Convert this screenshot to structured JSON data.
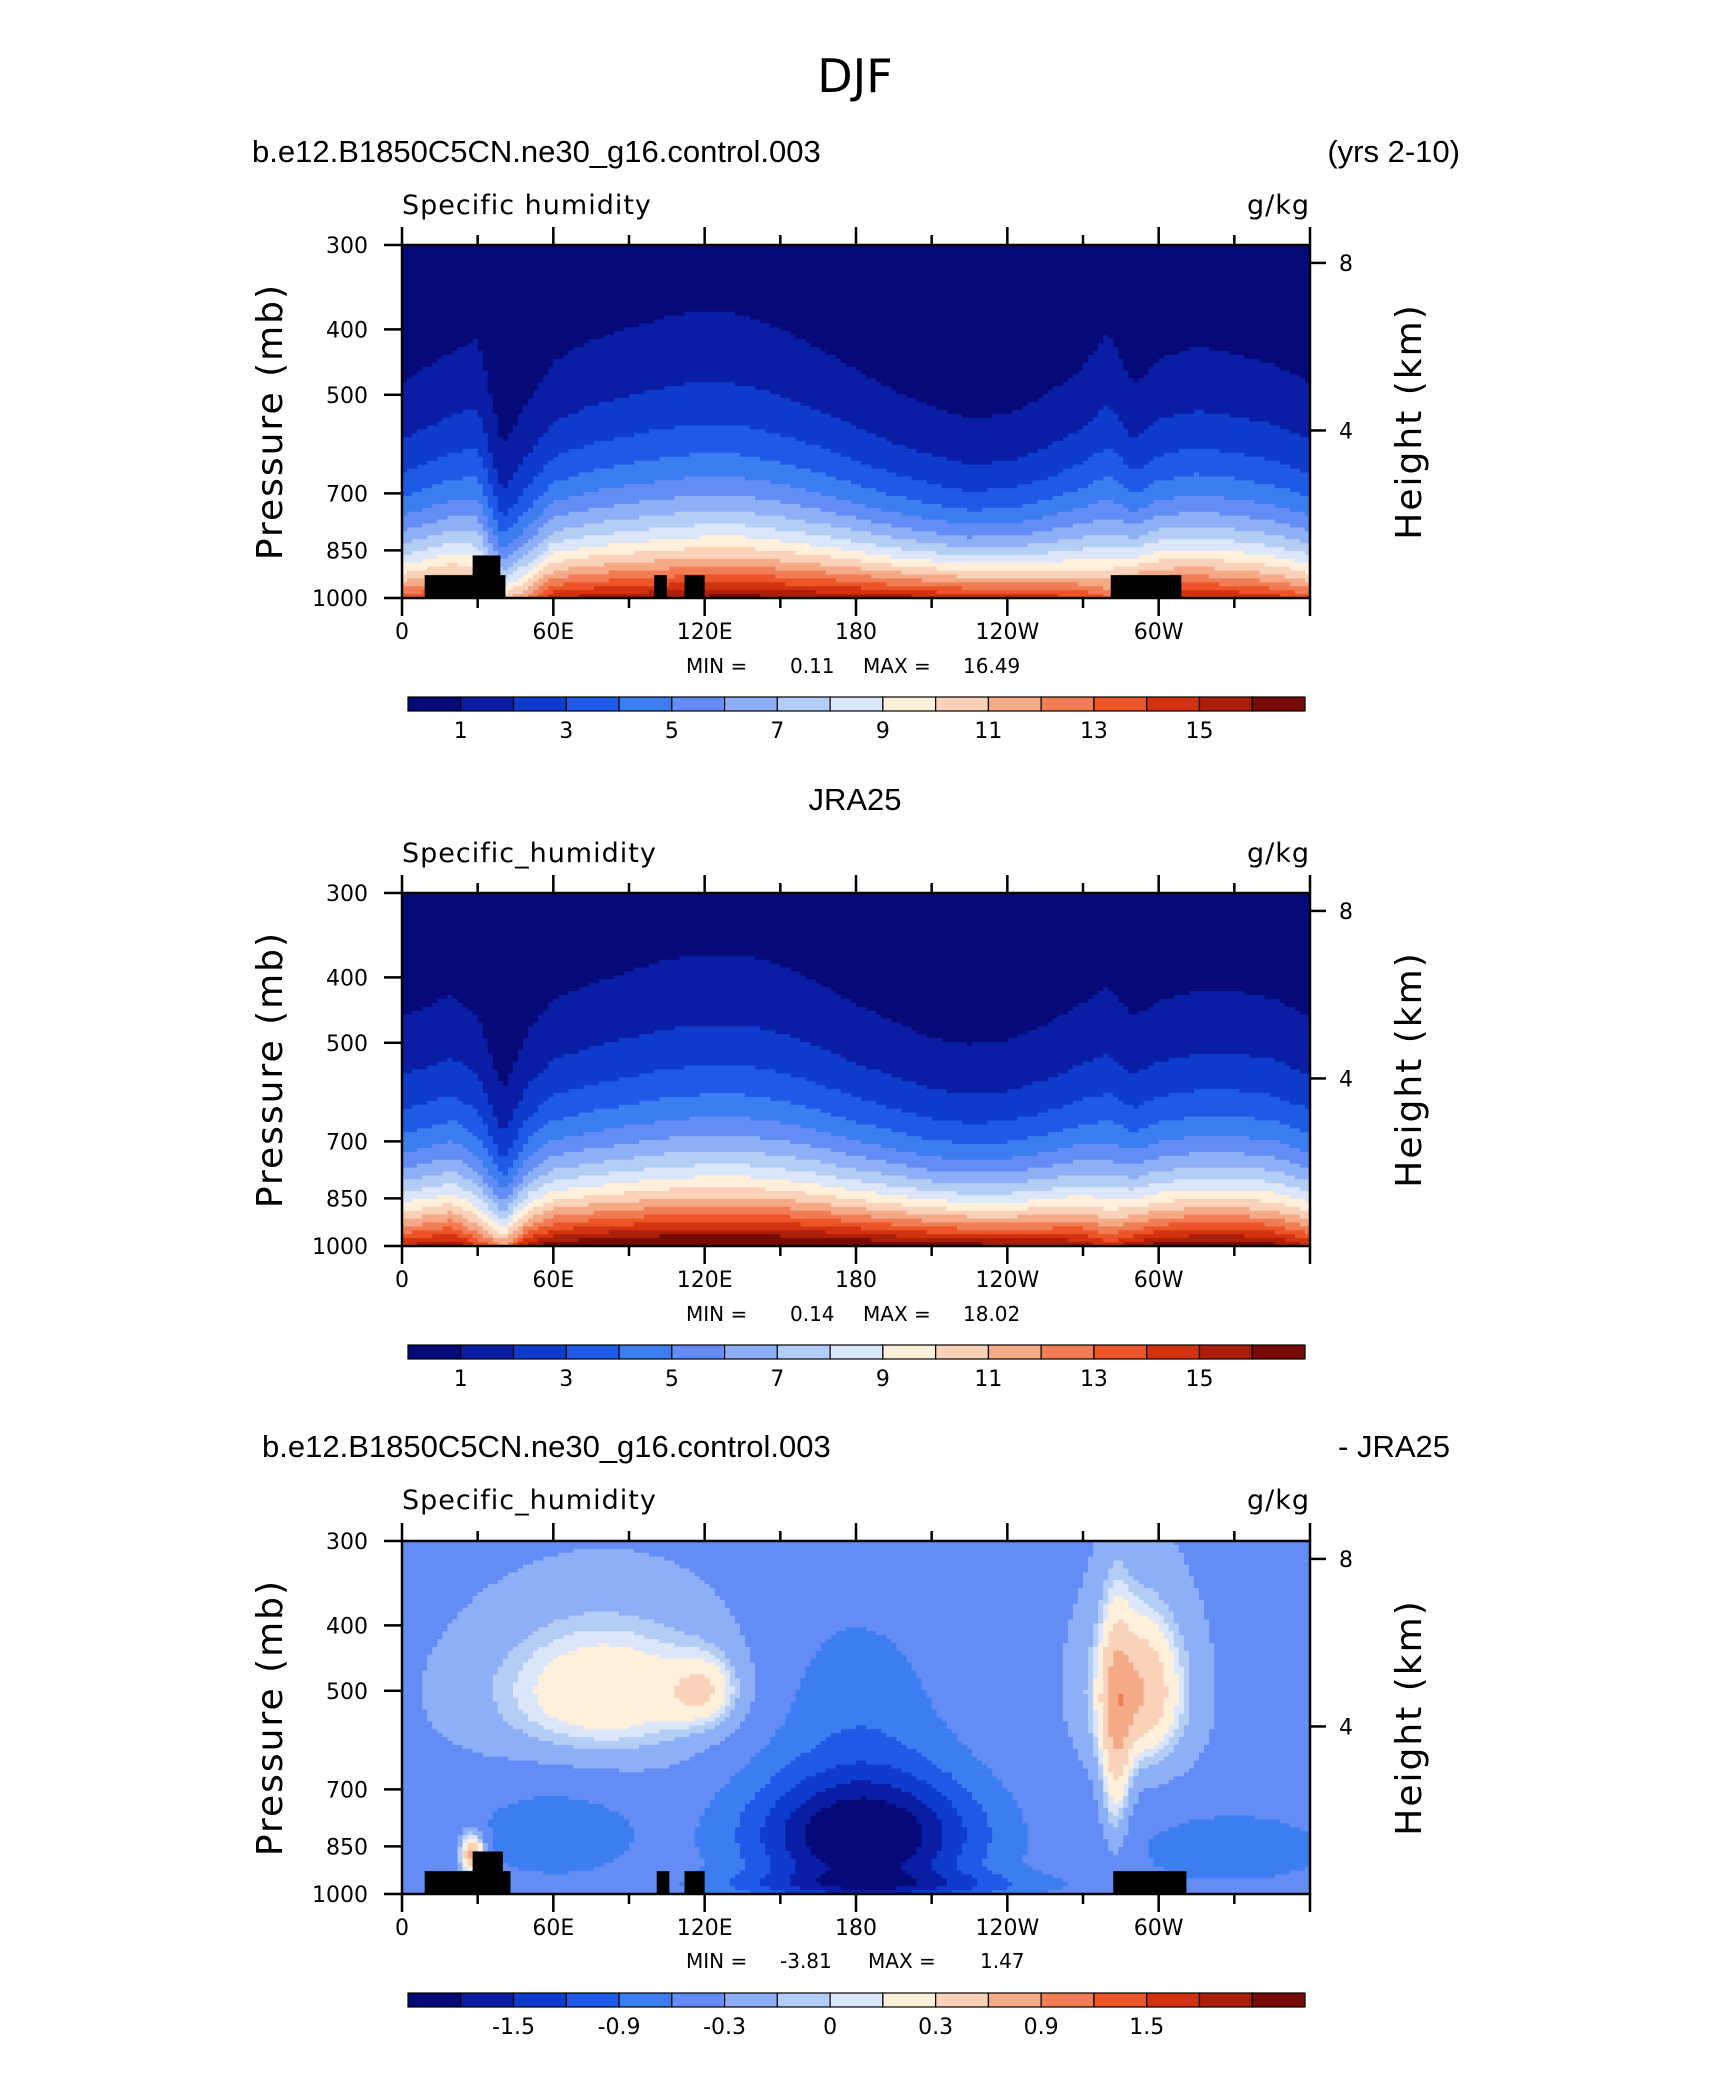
{
  "figure_title": "DJF",
  "panels": [
    {
      "title_left": "b.e12.B1850C5CN.ne30_g16.control.003",
      "title_right": "(yrs 2-10)",
      "var_label": "Specific humidity",
      "units": "g/kg",
      "min_label": "MIN =",
      "min_value": "0.11",
      "max_label": "MAX =",
      "max_value": "16.49"
    },
    {
      "title_center": "JRA25",
      "var_label": "Specific_humidity",
      "units": "g/kg",
      "min_label": "MIN =",
      "min_value": "0.14",
      "max_label": "MAX =",
      "max_value": "18.02"
    },
    {
      "title_left": "b.e12.B1850C5CN.ne30_g16.control.003",
      "title_right": "- JRA25",
      "var_label": "Specific_humidity",
      "units": "g/kg",
      "min_label": "MIN =",
      "min_value": "-3.81",
      "max_label": "MAX =",
      "max_value": "1.47"
    }
  ],
  "axes": {
    "ylabel_left": "Pressure (mb)",
    "ylabel_right": "Height (km)",
    "pressure_ticks": [
      "300",
      "400",
      "500",
      "700",
      "850",
      "1000"
    ],
    "height_ticks": [
      "8",
      "4"
    ],
    "lon_ticks": [
      "0",
      "60E",
      "120E",
      "180",
      "120W",
      "60W"
    ]
  },
  "colorbars": {
    "abs_labels": [
      "1",
      "3",
      "5",
      "7",
      "9",
      "11",
      "13",
      "15"
    ],
    "diff_labels": [
      "-1.5",
      "-0.9",
      "-0.3",
      "0",
      "0.3",
      "0.9",
      "1.5"
    ]
  },
  "colors": {
    "palette": [
      "#050a78",
      "#0a1ea5",
      "#0f3ccd",
      "#1e5ae6",
      "#3c7df0",
      "#648cf5",
      "#8caff5",
      "#b4cdf5",
      "#dce6fa",
      "#fff0dc",
      "#fad2b9",
      "#f5aa87",
      "#f07d55",
      "#eb5528",
      "#d2320f",
      "#aa1e0a",
      "#780a05"
    ],
    "abs_levels": [
      1,
      2,
      3,
      4,
      5,
      6,
      7,
      8,
      9,
      10,
      11,
      12,
      13,
      14,
      15,
      16
    ],
    "diff_levels": [
      -1.8,
      -1.5,
      -1.2,
      -0.9,
      -0.6,
      -0.3,
      -0.1,
      0,
      0.1,
      0.3,
      0.6,
      0.9,
      1.2,
      1.5,
      1.8,
      2.1
    ]
  },
  "chart_data": [
    {
      "type": "heatmap",
      "title": "b.e12.B1850C5CN.ne30_g16.control.003 (yrs 2-10)",
      "variable": "Specific humidity",
      "units": "g/kg",
      "x_ticks": [
        "0",
        "60E",
        "120E",
        "180",
        "120W",
        "60W"
      ],
      "x_range_deg": [
        0,
        360
      ],
      "y_ticks_pressure_mb": [
        300,
        400,
        500,
        700,
        850,
        1000
      ],
      "y_ticks_height_km": [
        8,
        4
      ],
      "min": 0.11,
      "max": 16.49,
      "profile": {
        "lon": [
          0,
          10,
          20,
          30,
          40,
          50,
          60,
          75,
          90,
          105,
          120,
          135,
          150,
          165,
          180,
          195,
          210,
          225,
          240,
          255,
          270,
          280,
          290,
          300,
          315,
          330,
          345,
          360
        ],
        "surface_q": [
          13.5,
          14.0,
          14.5,
          13.5,
          10.5,
          12.5,
          15.0,
          15.5,
          15.8,
          16.0,
          16.3,
          16.4,
          16.2,
          16.0,
          15.8,
          15.5,
          15.3,
          15.0,
          14.8,
          14.5,
          14.0,
          13.0,
          15.0,
          15.3,
          15.3,
          15.0,
          14.5,
          13.5
        ],
        "moist_height_factor": [
          0.9,
          0.95,
          1.0,
          1.08,
          0.7,
          0.85,
          0.95,
          1.02,
          1.06,
          1.1,
          1.12,
          1.1,
          1.05,
          0.98,
          0.9,
          0.82,
          0.76,
          0.72,
          0.74,
          0.82,
          0.95,
          1.12,
          0.85,
          0.95,
          1.0,
          0.98,
          0.95,
          0.9
        ]
      },
      "topography_boxes": [
        {
          "lon_from": 9,
          "lon_to": 41,
          "p_top_mb": 925
        },
        {
          "lon_from": 28,
          "lon_to": 39,
          "p_top_mb": 865
        },
        {
          "lon_from": 100,
          "lon_to": 105,
          "p_top_mb": 925
        },
        {
          "lon_from": 112,
          "lon_to": 120,
          "p_top_mb": 925
        },
        {
          "lon_from": 281,
          "lon_to": 309,
          "p_top_mb": 925
        }
      ]
    },
    {
      "type": "heatmap",
      "title": "JRA25",
      "variable": "Specific_humidity",
      "units": "g/kg",
      "x_ticks": [
        "0",
        "60E",
        "120E",
        "180",
        "120W",
        "60W"
      ],
      "x_range_deg": [
        0,
        360
      ],
      "y_ticks_pressure_mb": [
        300,
        400,
        500,
        700,
        850,
        1000
      ],
      "y_ticks_height_km": [
        8,
        4
      ],
      "min": 0.14,
      "max": 18.02,
      "profile": {
        "lon": [
          0,
          10,
          20,
          30,
          40,
          50,
          60,
          75,
          90,
          105,
          120,
          135,
          150,
          165,
          180,
          195,
          210,
          225,
          240,
          255,
          270,
          280,
          290,
          300,
          315,
          330,
          345,
          360
        ],
        "surface_q": [
          15.0,
          15.5,
          16.0,
          14.0,
          12.0,
          15.5,
          16.8,
          17.2,
          17.5,
          17.7,
          17.8,
          17.8,
          17.7,
          17.5,
          17.3,
          17.0,
          16.8,
          16.5,
          16.3,
          16.2,
          16.0,
          14.5,
          15.8,
          16.5,
          16.8,
          16.8,
          16.5,
          15.0
        ],
        "moist_height_factor": [
          0.92,
          0.95,
          0.98,
          0.95,
          0.68,
          0.85,
          0.95,
          1.0,
          1.04,
          1.08,
          1.1,
          1.1,
          1.06,
          1.0,
          0.92,
          0.86,
          0.8,
          0.78,
          0.8,
          0.86,
          0.95,
          1.05,
          0.9,
          0.95,
          0.98,
          0.98,
          0.96,
          0.92
        ]
      },
      "topography_boxes": []
    },
    {
      "type": "heatmap",
      "title": "b.e12.B1850C5CN.ne30_g16.control.003 - JRA25",
      "variable": "Specific_humidity",
      "units": "g/kg",
      "x_ticks": [
        "0",
        "60E",
        "120E",
        "180",
        "120W",
        "60W"
      ],
      "x_range_deg": [
        0,
        360
      ],
      "y_ticks_pressure_mb": [
        300,
        400,
        500,
        700,
        850,
        1000
      ],
      "y_ticks_height_km": [
        8,
        4
      ],
      "min": -3.81,
      "max": 1.47,
      "features": [
        {
          "lon": 80,
          "p_mb": 500,
          "dlon": 45,
          "dp_mb": 120,
          "amp": 0.65
        },
        {
          "lon": 120,
          "p_mb": 500,
          "dlon": 14,
          "dp_mb": 60,
          "amp": 0.45
        },
        {
          "lon": 292,
          "p_mb": 500,
          "dlon": 18,
          "dp_mb": 130,
          "amp": 0.95
        },
        {
          "lon": 283,
          "p_mb": 620,
          "dlon": 6,
          "dp_mb": 250,
          "amp": 0.6
        },
        {
          "lon": 28,
          "p_mb": 870,
          "dlon": 5,
          "dp_mb": 60,
          "amp": 1.2
        },
        {
          "lon": 183,
          "p_mb": 820,
          "dlon": 45,
          "dp_mb": 180,
          "amp": -1.9
        },
        {
          "lon": 190,
          "p_mb": 970,
          "dlon": 65,
          "dp_mb": 45,
          "amp": -0.7
        },
        {
          "lon": 60,
          "p_mb": 820,
          "dlon": 35,
          "dp_mb": 130,
          "amp": -0.5
        },
        {
          "lon": 330,
          "p_mb": 860,
          "dlon": 45,
          "dp_mb": 120,
          "amp": -0.45
        },
        {
          "lon": 180,
          "p_mb": 500,
          "dlon": 35,
          "dp_mb": 160,
          "amp": -0.35
        }
      ],
      "topography_boxes": [
        {
          "lon_from": 9,
          "lon_to": 43,
          "p_top_mb": 925
        },
        {
          "lon_from": 28,
          "lon_to": 40,
          "p_top_mb": 865
        },
        {
          "lon_from": 101,
          "lon_to": 106,
          "p_top_mb": 925
        },
        {
          "lon_from": 112,
          "lon_to": 120,
          "p_top_mb": 925
        },
        {
          "lon_from": 282,
          "lon_to": 311,
          "p_top_mb": 925
        }
      ]
    }
  ]
}
